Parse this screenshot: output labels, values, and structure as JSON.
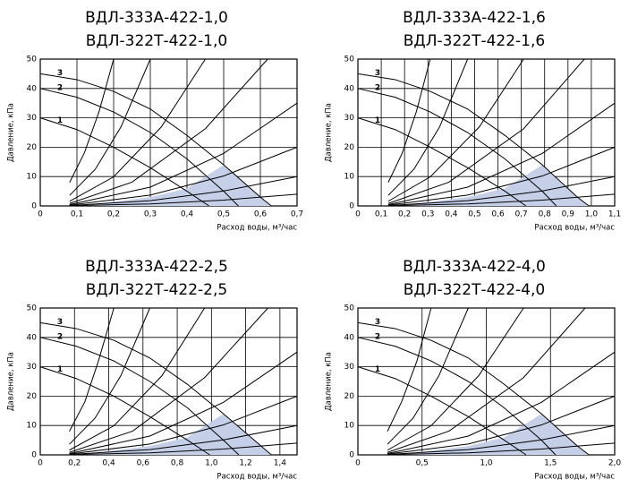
{
  "chart_data": [
    {
      "type": "line",
      "title": "ВДЛ-333А-422-1,0",
      "subtitle": "ВДЛ-322Т-422-1,0",
      "x_label": "Расход воды, м³/час",
      "y_label": "Давление, кПа",
      "xlim": [
        0,
        0.7
      ],
      "ylim": [
        0,
        50
      ],
      "xticks": [
        0,
        {
          "value": 0.1,
          "label": "0,1"
        },
        {
          "value": 0.2,
          "label": "0,2"
        },
        {
          "value": 0.3,
          "label": "0,3"
        },
        {
          "value": 0.4,
          "label": "0,4"
        },
        {
          "value": 0.5,
          "label": "0,5"
        },
        {
          "value": 0.6,
          "label": "0,6"
        },
        {
          "value": 0.7,
          "label": "0,7"
        }
      ],
      "yticks": [
        0,
        10,
        20,
        30,
        40,
        50
      ],
      "grid": true,
      "series": [
        {
          "type": "area",
          "color": "#c5d0e8",
          "x": [
            0.1,
            0.3,
            0.4,
            0.5,
            0.6,
            0.63
          ],
          "values": [
            0,
            3,
            6,
            14,
            3,
            0
          ]
        },
        {
          "name": "3",
          "color": "#000000",
          "x": [
            0,
            0.1,
            0.2,
            0.3,
            0.4,
            0.5,
            0.6,
            0.63
          ],
          "values": [
            45,
            43,
            39,
            33,
            24,
            14,
            3,
            0
          ]
        },
        {
          "name": "2",
          "color": "#000000",
          "x": [
            0,
            0.1,
            0.2,
            0.3,
            0.4,
            0.5,
            0.54
          ],
          "values": [
            40,
            37,
            32,
            25,
            16,
            5,
            0
          ]
        },
        {
          "name": "1",
          "color": "#000000",
          "x": [
            0,
            0.1,
            0.2,
            0.3,
            0.4,
            0.46
          ],
          "values": [
            30,
            26,
            20,
            13,
            5,
            0
          ]
        },
        {
          "color": "#000000",
          "x": [
            0.08,
            0.12,
            0.16,
            0.2
          ],
          "values": [
            8,
            18,
            32,
            50
          ]
        },
        {
          "color": "#000000",
          "x": [
            0.08,
            0.15,
            0.22,
            0.3
          ],
          "values": [
            3.6,
            12.5,
            26.9,
            50
          ]
        },
        {
          "color": "#000000",
          "x": [
            0.08,
            0.2,
            0.33,
            0.45
          ],
          "values": [
            1.6,
            9.9,
            26.9,
            50
          ]
        },
        {
          "color": "#000000",
          "x": [
            0.08,
            0.25,
            0.45,
            0.62
          ],
          "values": [
            0.83,
            8.1,
            26.3,
            50
          ]
        },
        {
          "color": "#000000",
          "x": [
            0.08,
            0.3,
            0.5,
            0.7
          ],
          "values": [
            0.46,
            6.4,
            17.9,
            35
          ]
        },
        {
          "color": "#000000",
          "x": [
            0.08,
            0.3,
            0.5,
            0.7
          ],
          "values": [
            0.26,
            3.7,
            10.2,
            20
          ]
        },
        {
          "color": "#000000",
          "x": [
            0.08,
            0.3,
            0.5,
            0.7
          ],
          "values": [
            0.13,
            1.8,
            5.1,
            10
          ]
        },
        {
          "color": "#000000",
          "x": [
            0.08,
            0.3,
            0.5,
            0.7
          ],
          "values": [
            0.05,
            0.7,
            2,
            4
          ]
        }
      ]
    },
    {
      "type": "line",
      "title": "ВДЛ-333А-422-1,6",
      "subtitle": "ВДЛ-322Т-422-1,6",
      "x_label": "Расход воды, м³/час",
      "y_label": "Давление, кПа",
      "xlim": [
        0,
        1.1
      ],
      "ylim": [
        0,
        50
      ],
      "xticks": [
        0,
        {
          "value": 0.1,
          "label": "0,1"
        },
        {
          "value": 0.2,
          "label": "0,2"
        },
        {
          "value": 0.3,
          "label": "0,3"
        },
        {
          "value": 0.4,
          "label": "0,4"
        },
        {
          "value": 0.5,
          "label": "0,5"
        },
        {
          "value": 0.6,
          "label": "0,6"
        },
        {
          "value": 0.7,
          "label": "0,7"
        },
        {
          "value": 0.8,
          "label": "0,8"
        },
        {
          "value": 0.9,
          "label": "0,9"
        },
        {
          "value": 1.0,
          "label": "1,0"
        },
        {
          "value": 1.1,
          "label": "1,1"
        }
      ],
      "yticks": [
        0,
        10,
        20,
        30,
        40,
        50
      ],
      "grid": true,
      "series": [
        {
          "type": "area",
          "color": "#c5d0e8",
          "x": [
            0.16,
            0.47,
            0.63,
            0.79,
            0.94,
            0.99
          ],
          "values": [
            0,
            3,
            6,
            14,
            3,
            0
          ]
        },
        {
          "name": "3",
          "color": "#000000",
          "x": [
            0,
            0.16,
            0.31,
            0.47,
            0.63,
            0.79,
            0.94,
            0.99
          ],
          "values": [
            45,
            43,
            39,
            33,
            24,
            14,
            3,
            0
          ]
        },
        {
          "name": "2",
          "color": "#000000",
          "x": [
            0,
            0.16,
            0.31,
            0.47,
            0.63,
            0.79,
            0.85
          ],
          "values": [
            40,
            37,
            32,
            25,
            16,
            5,
            0
          ]
        },
        {
          "name": "1",
          "color": "#000000",
          "x": [
            0,
            0.16,
            0.31,
            0.47,
            0.63,
            0.72
          ],
          "values": [
            30,
            26,
            20,
            13,
            5,
            0
          ]
        },
        {
          "color": "#000000",
          "x": [
            0.13,
            0.19,
            0.25,
            0.31
          ],
          "values": [
            8,
            18,
            32,
            50
          ]
        },
        {
          "color": "#000000",
          "x": [
            0.13,
            0.24,
            0.35,
            0.47
          ],
          "values": [
            3.6,
            12.5,
            26.9,
            50
          ]
        },
        {
          "color": "#000000",
          "x": [
            0.13,
            0.31,
            0.52,
            0.71
          ],
          "values": [
            1.6,
            9.9,
            26.9,
            50
          ]
        },
        {
          "color": "#000000",
          "x": [
            0.13,
            0.39,
            0.71,
            0.97
          ],
          "values": [
            0.83,
            8.1,
            26.3,
            50
          ]
        },
        {
          "color": "#000000",
          "x": [
            0.13,
            0.47,
            0.79,
            1.1
          ],
          "values": [
            0.46,
            6.4,
            17.9,
            35
          ]
        },
        {
          "color": "#000000",
          "x": [
            0.13,
            0.47,
            0.79,
            1.1
          ],
          "values": [
            0.26,
            3.7,
            10.2,
            20
          ]
        },
        {
          "color": "#000000",
          "x": [
            0.13,
            0.47,
            0.79,
            1.1
          ],
          "values": [
            0.13,
            1.8,
            5.1,
            10
          ]
        },
        {
          "color": "#000000",
          "x": [
            0.13,
            0.47,
            0.79,
            1.1
          ],
          "values": [
            0.05,
            0.7,
            2,
            4
          ]
        }
      ]
    },
    {
      "type": "line",
      "title": "ВДЛ-333А-422-2,5",
      "subtitle": "ВДЛ-322Т-422-2,5",
      "x_label": "Расход воды, м³/час",
      "y_label": "Давление, кПа",
      "xlim": [
        0,
        1.5
      ],
      "ylim": [
        0,
        50
      ],
      "xticks": [
        0,
        {
          "value": 0.2,
          "label": "0,2"
        },
        {
          "value": 0.4,
          "label": "0,4"
        },
        {
          "value": 0.6,
          "label": "0,6"
        },
        {
          "value": 0.8,
          "label": "0,8"
        },
        {
          "value": 1.0,
          "label": "1,0"
        },
        {
          "value": 1.2,
          "label": "1,2"
        },
        {
          "value": 1.4,
          "label": "1,4"
        }
      ],
      "yticks": [
        0,
        10,
        20,
        30,
        40,
        50
      ],
      "grid": true,
      "series": [
        {
          "type": "area",
          "color": "#c5d0e8",
          "x": [
            0.21,
            0.64,
            0.86,
            1.07,
            1.29,
            1.35
          ],
          "values": [
            0,
            3,
            6,
            14,
            3,
            0
          ]
        },
        {
          "name": "3",
          "color": "#000000",
          "x": [
            0,
            0.21,
            0.43,
            0.64,
            0.86,
            1.07,
            1.29,
            1.35
          ],
          "values": [
            45,
            43,
            39,
            33,
            24,
            14,
            3,
            0
          ]
        },
        {
          "name": "2",
          "color": "#000000",
          "x": [
            0,
            0.21,
            0.43,
            0.64,
            0.86,
            1.07,
            1.16
          ],
          "values": [
            40,
            37,
            32,
            25,
            16,
            5,
            0
          ]
        },
        {
          "name": "1",
          "color": "#000000",
          "x": [
            0,
            0.21,
            0.43,
            0.64,
            0.86,
            0.99
          ],
          "values": [
            30,
            26,
            20,
            13,
            5,
            0
          ]
        },
        {
          "color": "#000000",
          "x": [
            0.17,
            0.26,
            0.34,
            0.43
          ],
          "values": [
            8,
            18,
            32,
            50
          ]
        },
        {
          "color": "#000000",
          "x": [
            0.17,
            0.32,
            0.47,
            0.64
          ],
          "values": [
            3.6,
            12.5,
            26.9,
            50
          ]
        },
        {
          "color": "#000000",
          "x": [
            0.17,
            0.43,
            0.71,
            0.96
          ],
          "values": [
            1.6,
            9.9,
            26.9,
            50
          ]
        },
        {
          "color": "#000000",
          "x": [
            0.17,
            0.54,
            0.96,
            1.33
          ],
          "values": [
            0.83,
            8.1,
            26.3,
            50
          ]
        },
        {
          "color": "#000000",
          "x": [
            0.17,
            0.64,
            1.07,
            1.5
          ],
          "values": [
            0.46,
            6.4,
            17.9,
            35
          ]
        },
        {
          "color": "#000000",
          "x": [
            0.17,
            0.64,
            1.07,
            1.5
          ],
          "values": [
            0.26,
            3.7,
            10.2,
            20
          ]
        },
        {
          "color": "#000000",
          "x": [
            0.17,
            0.64,
            1.07,
            1.5
          ],
          "values": [
            0.13,
            1.8,
            5.1,
            10
          ]
        },
        {
          "color": "#000000",
          "x": [
            0.17,
            0.64,
            1.07,
            1.5
          ],
          "values": [
            0.05,
            0.7,
            2,
            4
          ]
        }
      ]
    },
    {
      "type": "line",
      "title": "ВДЛ-333А-422-4,0",
      "subtitle": "ВДЛ-322Т-422-4,0",
      "x_label": "Расход воды, м³/час",
      "y_label": "Давление, кПа",
      "xlim": [
        0,
        2.0
      ],
      "ylim": [
        0,
        50
      ],
      "xticks": [
        0,
        {
          "value": 0.5,
          "label": "0,5"
        },
        {
          "value": 1.0,
          "label": "1,0"
        },
        {
          "value": 1.5,
          "label": "1,5"
        },
        {
          "value": 2.0,
          "label": "2,0"
        }
      ],
      "yticks": [
        0,
        10,
        20,
        30,
        40,
        50
      ],
      "grid": true,
      "series": [
        {
          "type": "area",
          "color": "#c5d0e8",
          "x": [
            0.29,
            0.86,
            1.14,
            1.43,
            1.71,
            1.8
          ],
          "values": [
            0,
            3,
            6,
            14,
            3,
            0
          ]
        },
        {
          "name": "3",
          "color": "#000000",
          "x": [
            0,
            0.29,
            0.57,
            0.86,
            1.14,
            1.43,
            1.71,
            1.8
          ],
          "values": [
            45,
            43,
            39,
            33,
            24,
            14,
            3,
            0
          ]
        },
        {
          "name": "2",
          "color": "#000000",
          "x": [
            0,
            0.29,
            0.57,
            0.86,
            1.14,
            1.43,
            1.54
          ],
          "values": [
            40,
            37,
            32,
            25,
            16,
            5,
            0
          ]
        },
        {
          "name": "1",
          "color": "#000000",
          "x": [
            0,
            0.29,
            0.57,
            0.86,
            1.14,
            1.31
          ],
          "values": [
            30,
            26,
            20,
            13,
            5,
            0
          ]
        },
        {
          "color": "#000000",
          "x": [
            0.23,
            0.34,
            0.46,
            0.57
          ],
          "values": [
            8,
            18,
            32,
            50
          ]
        },
        {
          "color": "#000000",
          "x": [
            0.23,
            0.43,
            0.63,
            0.86
          ],
          "values": [
            3.6,
            12.5,
            26.9,
            50
          ]
        },
        {
          "color": "#000000",
          "x": [
            0.23,
            0.57,
            0.94,
            1.29
          ],
          "values": [
            1.6,
            9.9,
            26.9,
            50
          ]
        },
        {
          "color": "#000000",
          "x": [
            0.23,
            0.71,
            1.29,
            1.77
          ],
          "values": [
            0.83,
            8.1,
            26.3,
            50
          ]
        },
        {
          "color": "#000000",
          "x": [
            0.23,
            0.86,
            1.43,
            2.0
          ],
          "values": [
            0.46,
            6.4,
            17.9,
            35
          ]
        },
        {
          "color": "#000000",
          "x": [
            0.23,
            0.86,
            1.43,
            2.0
          ],
          "values": [
            0.26,
            3.7,
            10.2,
            20
          ]
        },
        {
          "color": "#000000",
          "x": [
            0.23,
            0.86,
            1.43,
            2.0
          ],
          "values": [
            0.13,
            1.8,
            5.1,
            10
          ]
        },
        {
          "color": "#000000",
          "x": [
            0.23,
            0.86,
            1.43,
            2.0
          ],
          "values": [
            0.05,
            0.7,
            2,
            4
          ]
        }
      ]
    }
  ]
}
